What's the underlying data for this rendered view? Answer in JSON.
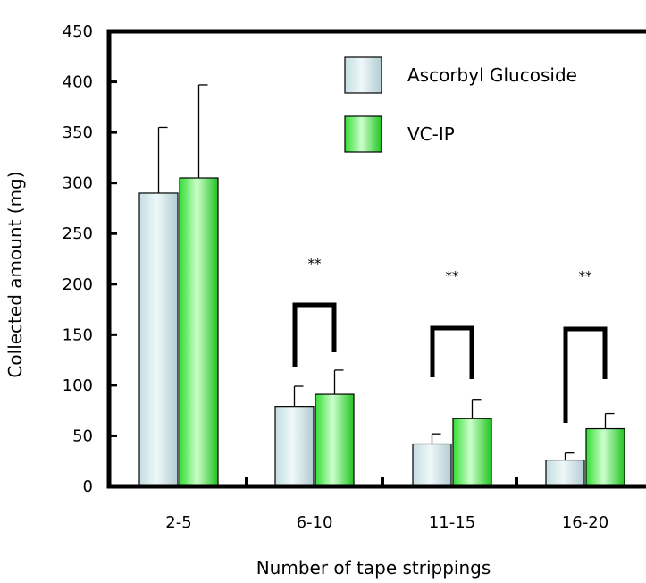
{
  "chart_data": {
    "type": "bar",
    "title": "",
    "xlabel": "Number of tape strippings",
    "ylabel": "Collected amount (mg)",
    "ylim": [
      0,
      450
    ],
    "y_ticks": [
      0,
      50,
      100,
      150,
      200,
      250,
      300,
      350,
      400,
      450
    ],
    "categories": [
      "2-5",
      "6-10",
      "11-15",
      "16-20"
    ],
    "series": [
      {
        "name": "Ascorbyl Glucoside",
        "values": [
          290,
          79,
          42,
          26
        ],
        "errors": [
          65,
          20,
          10,
          7
        ],
        "color": "#dbeef0"
      },
      {
        "name": "VC-IP",
        "values": [
          305,
          91,
          67,
          57
        ],
        "errors": [
          92,
          24,
          19,
          15
        ],
        "color": "#66ff66"
      }
    ],
    "significance": [
      {
        "category": "6-10",
        "label": "**"
      },
      {
        "category": "11-15",
        "label": "**"
      },
      {
        "category": "16-20",
        "label": "**"
      }
    ],
    "legend_position": "top-right",
    "grid": false
  }
}
